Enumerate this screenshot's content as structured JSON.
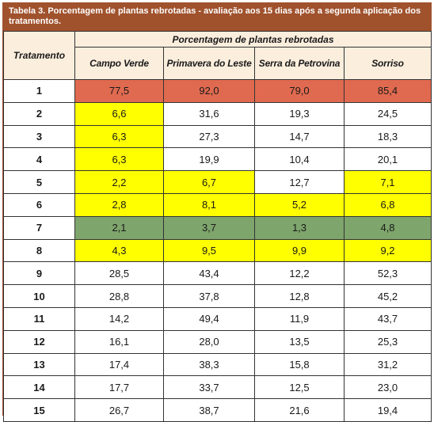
{
  "caption": "Tabela 3. Porcentagem de plantas rebrotadas - avaliação aos 15 dias após a segunda aplicação dos tratamentos.",
  "header": {
    "row_header": "Tratamento",
    "group_header": "Porcentagem de plantas rebrotadas",
    "columns": [
      "Campo Verde",
      "Primavera do Leste",
      "Serra da Petrovina",
      "Sorriso"
    ]
  },
  "colors": {
    "caption_bar": "#a0522d",
    "header_bg": "#fbeedd",
    "highlight_red": "#e06a50",
    "highlight_yellow": "#ffff00",
    "highlight_green": "#7ea56c"
  },
  "rows": [
    {
      "trt": "1",
      "values": [
        "77,5",
        "92,0",
        "79,0",
        "85,4"
      ],
      "hl": [
        "red",
        "red",
        "red",
        "red"
      ]
    },
    {
      "trt": "2",
      "values": [
        "6,6",
        "31,6",
        "19,3",
        "24,5"
      ],
      "hl": [
        "yellow",
        "",
        "",
        ""
      ]
    },
    {
      "trt": "3",
      "values": [
        "6,3",
        "27,3",
        "14,7",
        "18,3"
      ],
      "hl": [
        "yellow",
        "",
        "",
        ""
      ]
    },
    {
      "trt": "4",
      "values": [
        "6,3",
        "19,9",
        "10,4",
        "20,1"
      ],
      "hl": [
        "yellow",
        "",
        "",
        ""
      ]
    },
    {
      "trt": "5",
      "values": [
        "2,2",
        "6,7",
        "12,7",
        "7,1"
      ],
      "hl": [
        "yellow",
        "yellow",
        "",
        "yellow"
      ]
    },
    {
      "trt": "6",
      "values": [
        "2,8",
        "8,1",
        "5,2",
        "6,8"
      ],
      "hl": [
        "yellow",
        "yellow",
        "yellow",
        "yellow"
      ]
    },
    {
      "trt": "7",
      "values": [
        "2,1",
        "3,7",
        "1,3",
        "4,8"
      ],
      "hl": [
        "green",
        "green",
        "green",
        "green"
      ]
    },
    {
      "trt": "8",
      "values": [
        "4,3",
        "9,5",
        "9,9",
        "9,2"
      ],
      "hl": [
        "yellow",
        "yellow",
        "yellow",
        "yellow"
      ]
    },
    {
      "trt": "9",
      "values": [
        "28,5",
        "43,4",
        "12,2",
        "52,3"
      ],
      "hl": [
        "",
        "",
        "",
        ""
      ]
    },
    {
      "trt": "10",
      "values": [
        "28,8",
        "37,8",
        "12,8",
        "45,2"
      ],
      "hl": [
        "",
        "",
        "",
        ""
      ]
    },
    {
      "trt": "11",
      "values": [
        "14,2",
        "49,4",
        "11,9",
        "43,7"
      ],
      "hl": [
        "",
        "",
        "",
        ""
      ]
    },
    {
      "trt": "12",
      "values": [
        "16,1",
        "28,0",
        "13,5",
        "25,3"
      ],
      "hl": [
        "",
        "",
        "",
        ""
      ]
    },
    {
      "trt": "13",
      "values": [
        "17,4",
        "38,3",
        "15,8",
        "31,2"
      ],
      "hl": [
        "",
        "",
        "",
        ""
      ]
    },
    {
      "trt": "14",
      "values": [
        "17,7",
        "33,7",
        "12,5",
        "23,0"
      ],
      "hl": [
        "",
        "",
        "",
        ""
      ]
    },
    {
      "trt": "15",
      "values": [
        "26,7",
        "38,7",
        "21,6",
        "19,4"
      ],
      "hl": [
        "",
        "",
        "",
        ""
      ]
    }
  ]
}
